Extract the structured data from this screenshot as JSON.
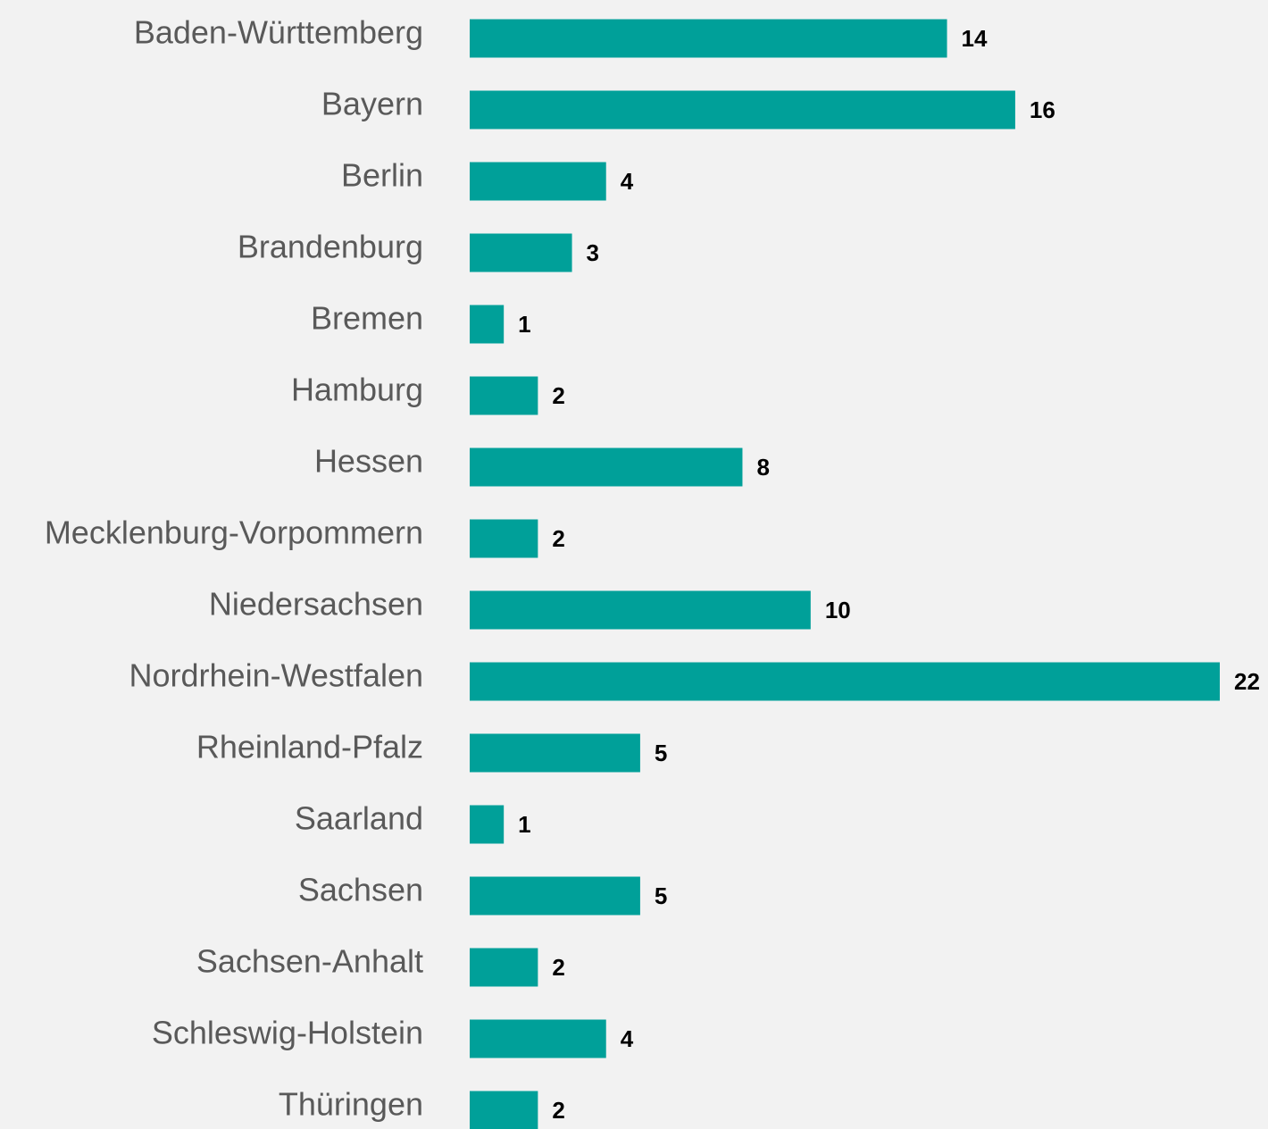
{
  "chart_data": {
    "type": "bar",
    "orientation": "horizontal",
    "categories": [
      "Baden-Württemberg",
      "Bayern",
      "Berlin",
      "Brandenburg",
      "Bremen",
      "Hamburg",
      "Hessen",
      "Mecklenburg-Vorpommern",
      "Niedersachsen",
      "Nordrhein-Westfalen",
      "Rheinland-Pfalz",
      "Saarland",
      "Sachsen",
      "Sachsen-Anhalt",
      "Schleswig-Holstein",
      "Thüringen"
    ],
    "values": [
      14,
      16,
      4,
      3,
      1,
      2,
      8,
      2,
      10,
      22,
      5,
      1,
      5,
      2,
      4,
      2
    ],
    "color": "#00a099"
  }
}
